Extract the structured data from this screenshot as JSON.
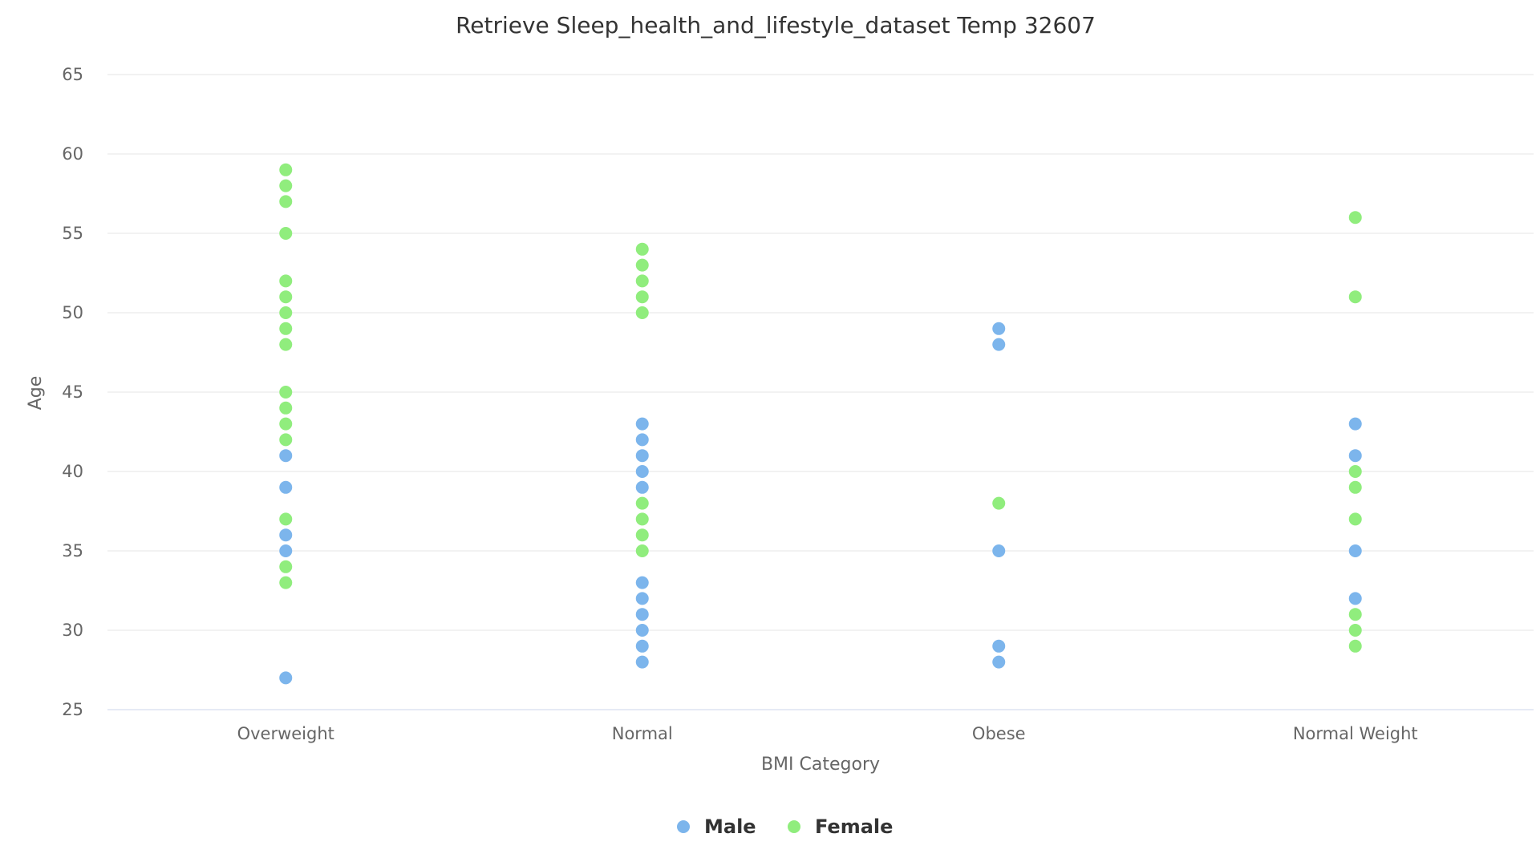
{
  "chart_data": {
    "type": "scatter",
    "title": "Retrieve Sleep_health_and_lifestyle_dataset Temp 32607",
    "xlabel": "BMI Category",
    "ylabel": "Age",
    "categories": [
      "Overweight",
      "Normal",
      "Obese",
      "Normal Weight"
    ],
    "ylim": [
      25,
      65
    ],
    "yticks": [
      25,
      30,
      35,
      40,
      45,
      50,
      55,
      60,
      65
    ],
    "grid": true,
    "legend_position": "bottom-center",
    "series": [
      {
        "name": "Male",
        "color": "#7cb5ec",
        "points": [
          {
            "category": "Overweight",
            "y": 27
          },
          {
            "category": "Overweight",
            "y": 35
          },
          {
            "category": "Overweight",
            "y": 36
          },
          {
            "category": "Overweight",
            "y": 39
          },
          {
            "category": "Overweight",
            "y": 41
          },
          {
            "category": "Normal",
            "y": 28
          },
          {
            "category": "Normal",
            "y": 29
          },
          {
            "category": "Normal",
            "y": 30
          },
          {
            "category": "Normal",
            "y": 31
          },
          {
            "category": "Normal",
            "y": 32
          },
          {
            "category": "Normal",
            "y": 33
          },
          {
            "category": "Normal",
            "y": 39
          },
          {
            "category": "Normal",
            "y": 40
          },
          {
            "category": "Normal",
            "y": 41
          },
          {
            "category": "Normal",
            "y": 42
          },
          {
            "category": "Normal",
            "y": 43
          },
          {
            "category": "Obese",
            "y": 28
          },
          {
            "category": "Obese",
            "y": 29
          },
          {
            "category": "Obese",
            "y": 35
          },
          {
            "category": "Obese",
            "y": 48
          },
          {
            "category": "Obese",
            "y": 49
          },
          {
            "category": "Normal Weight",
            "y": 32
          },
          {
            "category": "Normal Weight",
            "y": 35
          },
          {
            "category": "Normal Weight",
            "y": 41
          },
          {
            "category": "Normal Weight",
            "y": 43
          }
        ]
      },
      {
        "name": "Female",
        "color": "#90ed7d",
        "points": [
          {
            "category": "Overweight",
            "y": 33
          },
          {
            "category": "Overweight",
            "y": 34
          },
          {
            "category": "Overweight",
            "y": 37
          },
          {
            "category": "Overweight",
            "y": 42
          },
          {
            "category": "Overweight",
            "y": 43
          },
          {
            "category": "Overweight",
            "y": 44
          },
          {
            "category": "Overweight",
            "y": 45
          },
          {
            "category": "Overweight",
            "y": 48
          },
          {
            "category": "Overweight",
            "y": 49
          },
          {
            "category": "Overweight",
            "y": 50
          },
          {
            "category": "Overweight",
            "y": 51
          },
          {
            "category": "Overweight",
            "y": 52
          },
          {
            "category": "Overweight",
            "y": 55
          },
          {
            "category": "Overweight",
            "y": 57
          },
          {
            "category": "Overweight",
            "y": 58
          },
          {
            "category": "Overweight",
            "y": 59
          },
          {
            "category": "Normal",
            "y": 35
          },
          {
            "category": "Normal",
            "y": 36
          },
          {
            "category": "Normal",
            "y": 37
          },
          {
            "category": "Normal",
            "y": 38
          },
          {
            "category": "Normal",
            "y": 50
          },
          {
            "category": "Normal",
            "y": 51
          },
          {
            "category": "Normal",
            "y": 52
          },
          {
            "category": "Normal",
            "y": 53
          },
          {
            "category": "Normal",
            "y": 54
          },
          {
            "category": "Obese",
            "y": 38
          },
          {
            "category": "Normal Weight",
            "y": 29
          },
          {
            "category": "Normal Weight",
            "y": 30
          },
          {
            "category": "Normal Weight",
            "y": 31
          },
          {
            "category": "Normal Weight",
            "y": 37
          },
          {
            "category": "Normal Weight",
            "y": 39
          },
          {
            "category": "Normal Weight",
            "y": 40
          },
          {
            "category": "Normal Weight",
            "y": 51
          },
          {
            "category": "Normal Weight",
            "y": 56
          }
        ]
      }
    ]
  }
}
